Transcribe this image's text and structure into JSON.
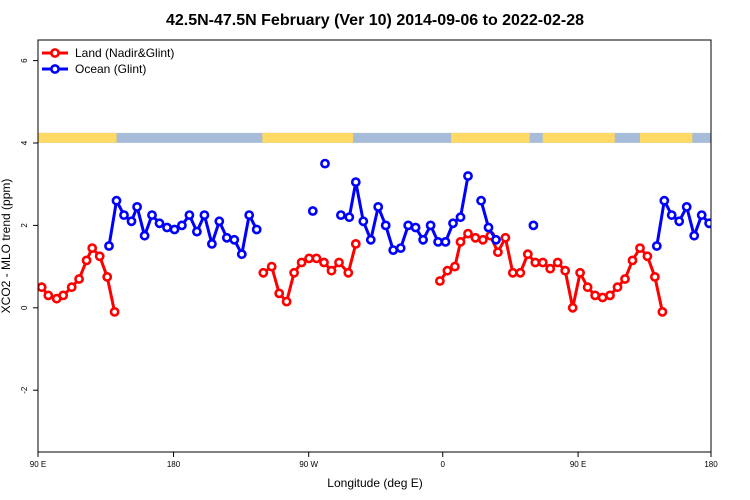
{
  "chart_data": {
    "type": "line",
    "title": "42.5N-47.5N February (Ver 10)   2014-09-06 to 2022-02-28",
    "xlabel": "Longitude (deg E)",
    "ylabel": "XCO2 - MLO trend (ppm)",
    "xlim": [
      90,
      450
    ],
    "ylim": [
      -3.5,
      6.5
    ],
    "x_ticks": [
      {
        "value": 90,
        "label": "90 E"
      },
      {
        "value": 162.5,
        "label": "180"
      },
      {
        "value": 234.8,
        "label": "90 W"
      },
      {
        "value": 306.5,
        "label": "0"
      },
      {
        "value": 378.9,
        "label": "90 E"
      },
      {
        "value": 450,
        "label": "180"
      }
    ],
    "y_ticks": [
      {
        "value": -2,
        "label": "-2"
      },
      {
        "value": 0,
        "label": "0"
      },
      {
        "value": 2,
        "label": "2"
      },
      {
        "value": 4,
        "label": "4"
      },
      {
        "value": 6,
        "label": "6"
      }
    ],
    "grid": false,
    "legend_position": "top-left",
    "surface_band": {
      "y": 4.1,
      "colors": {
        "land": "#ffd966",
        "ocean": "#a6bcd9"
      },
      "land_ranges": [
        [
          90,
          132
        ],
        [
          210,
          258.5
        ],
        [
          311,
          353
        ],
        [
          360,
          398.5
        ],
        [
          412,
          440
        ]
      ]
    },
    "series": [
      {
        "name": "Land (Nadir&Glint)",
        "color": "#ff0000",
        "segments": [
          [
            [
              92,
              0.5
            ],
            [
              95.5,
              0.3
            ],
            [
              100,
              0.22
            ],
            [
              103.5,
              0.3
            ],
            [
              108,
              0.5
            ],
            [
              112,
              0.7
            ],
            [
              116,
              1.15
            ],
            [
              119,
              1.45
            ],
            [
              123,
              1.25
            ],
            [
              127,
              0.75
            ],
            [
              131,
              -0.1
            ]
          ],
          [
            [
              210.5,
              0.85
            ],
            [
              215,
              1.0
            ],
            [
              219,
              0.35
            ],
            [
              223,
              0.15
            ],
            [
              227,
              0.85
            ],
            [
              231,
              1.1
            ],
            [
              235,
              1.2
            ],
            [
              239,
              1.2
            ],
            [
              243,
              1.1
            ],
            [
              247,
              0.9
            ],
            [
              251,
              1.1
            ],
            [
              256,
              0.85
            ],
            [
              260,
              1.55
            ]
          ],
          [
            [
              305,
              0.65
            ],
            [
              309,
              0.9
            ],
            [
              313,
              1.0
            ],
            [
              316,
              1.6
            ],
            [
              320,
              1.8
            ],
            [
              324,
              1.7
            ],
            [
              328,
              1.65
            ],
            [
              332,
              1.75
            ],
            [
              336,
              1.35
            ],
            [
              340,
              1.7
            ],
            [
              344,
              0.85
            ],
            [
              348,
              0.85
            ],
            [
              352,
              1.3
            ],
            [
              356,
              1.1
            ],
            [
              360,
              1.1
            ],
            [
              364,
              0.95
            ],
            [
              368,
              1.1
            ],
            [
              372,
              0.9
            ],
            [
              376,
              0.0
            ],
            [
              380,
              0.85
            ],
            [
              384,
              0.5
            ],
            [
              388,
              0.3
            ],
            [
              392,
              0.25
            ],
            [
              396,
              0.3
            ],
            [
              400,
              0.5
            ],
            [
              404,
              0.7
            ],
            [
              408,
              1.15
            ],
            [
              412,
              1.45
            ],
            [
              416,
              1.25
            ],
            [
              420,
              0.75
            ],
            [
              424,
              -0.1
            ]
          ]
        ]
      },
      {
        "name": "Ocean (Glint)",
        "color": "#0000ff",
        "segments": [
          [
            [
              128,
              1.5
            ],
            [
              132,
              2.6
            ],
            [
              136,
              2.25
            ],
            [
              140,
              2.1
            ],
            [
              143,
              2.45
            ],
            [
              147,
              1.75
            ],
            [
              151,
              2.25
            ],
            [
              155,
              2.05
            ],
            [
              159,
              1.95
            ],
            [
              163,
              1.9
            ],
            [
              167,
              2.0
            ],
            [
              171,
              2.25
            ],
            [
              175,
              1.85
            ],
            [
              179,
              2.25
            ],
            [
              183,
              1.55
            ],
            [
              187,
              2.1
            ],
            [
              191,
              1.7
            ],
            [
              195,
              1.65
            ],
            [
              199,
              1.3
            ],
            [
              203,
              2.25
            ],
            [
              207,
              1.9
            ]
          ],
          [
            [
              237,
              2.35
            ]
          ],
          [
            [
              243.5,
              3.5
            ]
          ],
          [
            [
              252,
              2.25
            ],
            [
              256.5,
              2.2
            ],
            [
              260,
              3.05
            ],
            [
              264,
              2.1
            ],
            [
              268,
              1.65
            ],
            [
              272,
              2.45
            ],
            [
              276,
              2.0
            ],
            [
              280,
              1.4
            ],
            [
              284,
              1.45
            ],
            [
              288,
              2.0
            ],
            [
              292,
              1.95
            ],
            [
              296,
              1.65
            ],
            [
              300,
              2.0
            ],
            [
              304,
              1.6
            ],
            [
              308,
              1.6
            ],
            [
              312,
              2.05
            ],
            [
              316,
              2.2
            ],
            [
              320,
              3.2
            ]
          ],
          [
            [
              327,
              2.6
            ],
            [
              331,
              1.95
            ],
            [
              335,
              1.65
            ]
          ],
          [
            [
              355,
              2.0
            ]
          ],
          [
            [
              421,
              1.5
            ],
            [
              425,
              2.6
            ],
            [
              429,
              2.25
            ],
            [
              433,
              2.1
            ],
            [
              437,
              2.45
            ],
            [
              441,
              1.75
            ],
            [
              445,
              2.25
            ],
            [
              449,
              2.05
            ],
            [
              453,
              1.95
            ]
          ]
        ]
      }
    ]
  }
}
